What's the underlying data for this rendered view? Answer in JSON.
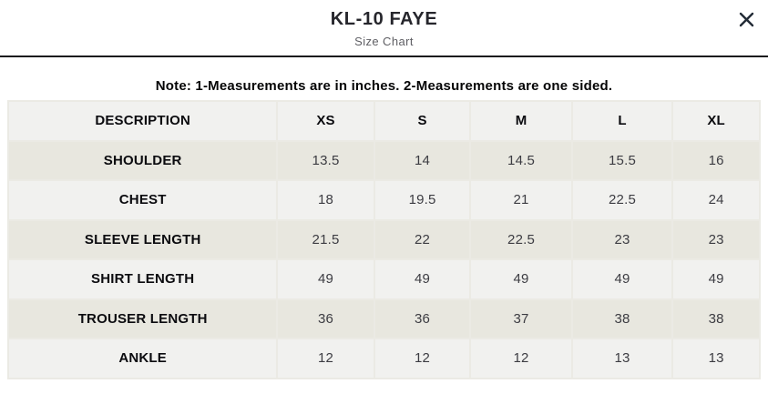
{
  "modal": {
    "title": "KL-10 FAYE",
    "subtitle": "Size Chart"
  },
  "note": "Note: 1-Measurements are in inches. 2-Measurements are one sided.",
  "table": {
    "columns": [
      "DESCRIPTION",
      "XS",
      "S",
      "M",
      "L",
      "XL"
    ],
    "rows": [
      {
        "label": "SHOULDER",
        "values": [
          "13.5",
          "14",
          "14.5",
          "15.5",
          "16"
        ]
      },
      {
        "label": "CHEST",
        "values": [
          "18",
          "19.5",
          "21",
          "22.5",
          "24"
        ]
      },
      {
        "label": "SLEEVE LENGTH",
        "values": [
          "21.5",
          "22",
          "22.5",
          "23",
          "23"
        ]
      },
      {
        "label": "SHIRT LENGTH",
        "values": [
          "49",
          "49",
          "49",
          "49",
          "49"
        ]
      },
      {
        "label": "TROUSER LENGTH",
        "values": [
          "36",
          "36",
          "37",
          "38",
          "38"
        ]
      },
      {
        "label": "ANKLE",
        "values": [
          "12",
          "12",
          "12",
          "13",
          "13"
        ]
      }
    ]
  },
  "colors": {
    "row_beige": "#e8e7df",
    "row_light": "#f1f1ef",
    "divider": "#18181c",
    "heading_text": "#26262c",
    "subtitle_text": "#5f5f64",
    "cell_text": "#3c3c42"
  }
}
